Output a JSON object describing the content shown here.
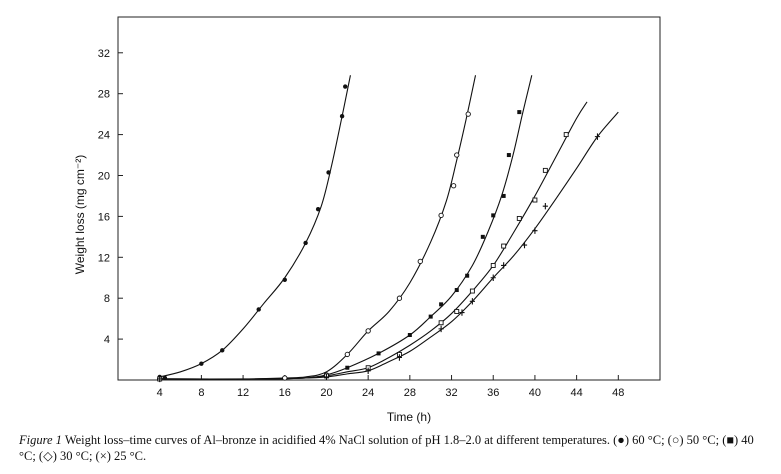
{
  "chart_data": {
    "type": "line",
    "title": "",
    "xlabel": "Time (h)",
    "ylabel": "Weight loss (mg cm⁻²)",
    "xlim": [
      0,
      52
    ],
    "ylim": [
      0,
      35.5
    ],
    "xticks": [
      4,
      8,
      12,
      16,
      20,
      24,
      28,
      32,
      36,
      40,
      44,
      48
    ],
    "yticks": [
      4,
      8,
      12,
      16,
      20,
      24,
      28,
      32
    ],
    "grid": false,
    "legend": "none",
    "series": [
      {
        "marker": "filled-circle",
        "points": [
          [
            4,
            0.3
          ],
          [
            4.5,
            0.2
          ],
          [
            8,
            1.6
          ],
          [
            10,
            2.9
          ],
          [
            13.5,
            6.9
          ],
          [
            16,
            9.8
          ],
          [
            18,
            13.4
          ],
          [
            19.2,
            16.7
          ],
          [
            20.2,
            20.3
          ],
          [
            21.5,
            25.8
          ],
          [
            21.8,
            28.7
          ]
        ],
        "curve": [
          [
            4,
            0.3
          ],
          [
            6,
            0.8
          ],
          [
            8,
            1.6
          ],
          [
            10,
            2.9
          ],
          [
            12,
            5.0
          ],
          [
            14,
            7.5
          ],
          [
            16,
            10.0
          ],
          [
            18,
            13.4
          ],
          [
            19.5,
            17.0
          ],
          [
            20.5,
            21.0
          ],
          [
            21.5,
            25.8
          ],
          [
            22.3,
            29.8
          ]
        ]
      },
      {
        "marker": "open-circle",
        "points": [
          [
            4,
            0.1
          ],
          [
            16,
            0.2
          ],
          [
            20,
            0.5
          ],
          [
            22,
            2.5
          ],
          [
            24,
            4.8
          ],
          [
            27,
            8.0
          ],
          [
            29,
            11.6
          ],
          [
            31,
            16.1
          ],
          [
            32.2,
            19.0
          ],
          [
            32.5,
            22.0
          ],
          [
            33.6,
            26.0
          ]
        ],
        "curve": [
          [
            4,
            0.1
          ],
          [
            12,
            0.1
          ],
          [
            16,
            0.2
          ],
          [
            18,
            0.3
          ],
          [
            20,
            0.8
          ],
          [
            22,
            2.5
          ],
          [
            24,
            4.8
          ],
          [
            26,
            6.7
          ],
          [
            28,
            9.5
          ],
          [
            30,
            13.5
          ],
          [
            31.5,
            17.5
          ],
          [
            32.5,
            21.5
          ],
          [
            33.4,
            25.5
          ],
          [
            34.3,
            29.8
          ]
        ]
      },
      {
        "marker": "filled-square",
        "points": [
          [
            4,
            0.1
          ],
          [
            22,
            1.2
          ],
          [
            25,
            2.6
          ],
          [
            28,
            4.4
          ],
          [
            30,
            6.2
          ],
          [
            31,
            7.4
          ],
          [
            32.5,
            8.8
          ],
          [
            33.5,
            10.2
          ],
          [
            35,
            14.0
          ],
          [
            36,
            16.1
          ],
          [
            37,
            18.0
          ],
          [
            37.5,
            22.0
          ],
          [
            38.5,
            26.2
          ]
        ],
        "curve": [
          [
            4,
            0.1
          ],
          [
            14,
            0.1
          ],
          [
            18,
            0.2
          ],
          [
            20,
            0.5
          ],
          [
            22,
            1.2
          ],
          [
            25,
            2.6
          ],
          [
            28,
            4.4
          ],
          [
            30,
            6.2
          ],
          [
            32,
            8.2
          ],
          [
            34,
            11.2
          ],
          [
            35.5,
            14.5
          ],
          [
            36.8,
            18.0
          ],
          [
            37.9,
            22.0
          ],
          [
            38.8,
            26.0
          ],
          [
            39.7,
            29.8
          ]
        ]
      },
      {
        "marker": "open-diamond",
        "points": [
          [
            4,
            0.1
          ],
          [
            20,
            0.4
          ],
          [
            24,
            1.2
          ],
          [
            27,
            2.5
          ],
          [
            31,
            5.6
          ],
          [
            32.5,
            6.7
          ],
          [
            34,
            8.7
          ],
          [
            36,
            11.2
          ],
          [
            37,
            13.1
          ],
          [
            38.5,
            15.8
          ],
          [
            40,
            17.6
          ],
          [
            41,
            20.5
          ],
          [
            43,
            24.0
          ]
        ],
        "curve": [
          [
            4,
            0.1
          ],
          [
            14,
            0.1
          ],
          [
            18,
            0.2
          ],
          [
            20,
            0.4
          ],
          [
            22,
            0.8
          ],
          [
            24,
            1.2
          ],
          [
            26,
            2.2
          ],
          [
            28,
            3.4
          ],
          [
            30,
            4.8
          ],
          [
            32,
            6.5
          ],
          [
            34,
            8.7
          ],
          [
            36,
            11.2
          ],
          [
            38,
            14.5
          ],
          [
            40,
            18.0
          ],
          [
            42,
            21.8
          ],
          [
            44,
            25.6
          ],
          [
            45,
            27.2
          ]
        ]
      },
      {
        "marker": "cross",
        "points": [
          [
            4,
            0.1
          ],
          [
            20,
            0.3
          ],
          [
            24,
            0.9
          ],
          [
            27,
            2.2
          ],
          [
            31,
            5.0
          ],
          [
            33,
            6.6
          ],
          [
            34,
            7.7
          ],
          [
            36,
            10.0
          ],
          [
            37,
            11.2
          ],
          [
            39,
            13.2
          ],
          [
            40,
            14.6
          ],
          [
            41,
            17.0
          ],
          [
            46,
            23.8
          ]
        ],
        "curve": [
          [
            4,
            0.1
          ],
          [
            14,
            0.1
          ],
          [
            18,
            0.2
          ],
          [
            20,
            0.3
          ],
          [
            22,
            0.6
          ],
          [
            24,
            0.9
          ],
          [
            26,
            1.8
          ],
          [
            28,
            2.8
          ],
          [
            30,
            4.2
          ],
          [
            32,
            5.7
          ],
          [
            34,
            7.7
          ],
          [
            36,
            10.0
          ],
          [
            38,
            12.2
          ],
          [
            40,
            14.8
          ],
          [
            42,
            17.7
          ],
          [
            44,
            20.7
          ],
          [
            46,
            23.8
          ],
          [
            48,
            26.2
          ]
        ]
      }
    ]
  },
  "caption": {
    "label": "Figure 1",
    "text": "  Weight loss–time curves of Al–bronze in acidified 4% NaCl solution of pH 1.8–2.0 at different temperatures. (●) 60 °C; (○) 50 °C; (■) 40 °C; (◇) 30 °C; (×) 25 °C."
  }
}
